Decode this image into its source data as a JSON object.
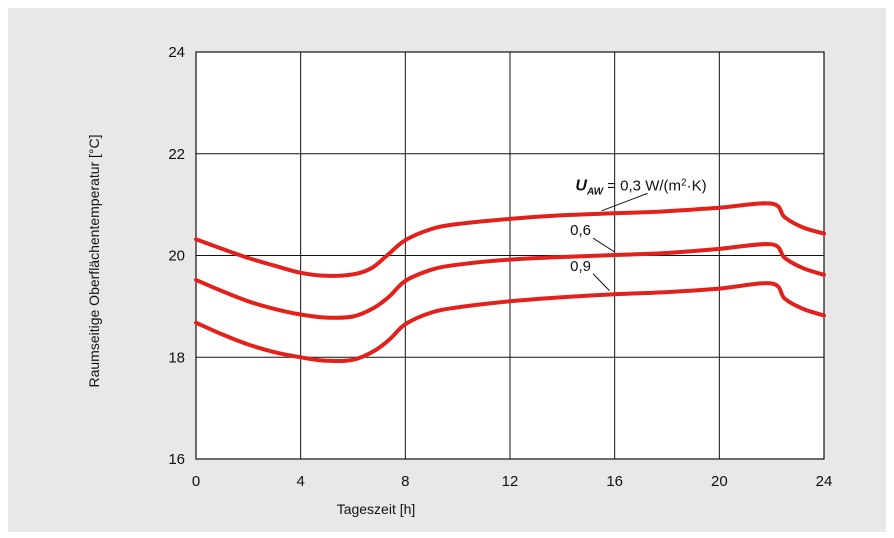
{
  "chart_data": {
    "type": "line",
    "title": "",
    "xlabel": "Tageszeit [h]",
    "ylabel": "Raumseitige Oberflächentemperatur [°C]",
    "xlim": [
      0,
      24
    ],
    "ylim": [
      16,
      24
    ],
    "x_ticks": [
      "0",
      "4",
      "8",
      "12",
      "16",
      "20",
      "24"
    ],
    "y_ticks": [
      "16",
      "18",
      "20",
      "22",
      "24"
    ],
    "grid": true,
    "line_color": "#e3211c",
    "series": [
      {
        "name": "0,3",
        "points": [
          [
            0,
            20.32
          ],
          [
            1,
            20.13
          ],
          [
            2,
            19.95
          ],
          [
            3,
            19.8
          ],
          [
            4,
            19.66
          ],
          [
            5,
            19.6
          ],
          [
            6,
            19.63
          ],
          [
            6.7,
            19.75
          ],
          [
            7.3,
            20.0
          ],
          [
            8,
            20.3
          ],
          [
            9,
            20.52
          ],
          [
            10,
            20.62
          ],
          [
            12,
            20.72
          ],
          [
            14,
            20.79
          ],
          [
            16,
            20.83
          ],
          [
            18,
            20.87
          ],
          [
            20,
            20.94
          ],
          [
            22,
            21.02
          ],
          [
            22.5,
            20.75
          ],
          [
            23.2,
            20.55
          ],
          [
            24,
            20.43
          ]
        ]
      },
      {
        "name": "0,6",
        "points": [
          [
            0,
            19.52
          ],
          [
            1,
            19.3
          ],
          [
            2,
            19.1
          ],
          [
            3,
            18.95
          ],
          [
            4,
            18.84
          ],
          [
            5,
            18.78
          ],
          [
            6,
            18.8
          ],
          [
            6.8,
            18.97
          ],
          [
            7.4,
            19.2
          ],
          [
            8,
            19.5
          ],
          [
            9,
            19.72
          ],
          [
            10,
            19.82
          ],
          [
            12,
            19.92
          ],
          [
            14,
            19.97
          ],
          [
            16,
            20.01
          ],
          [
            18,
            20.05
          ],
          [
            20,
            20.13
          ],
          [
            22,
            20.22
          ],
          [
            22.5,
            19.95
          ],
          [
            23.2,
            19.75
          ],
          [
            24,
            19.62
          ]
        ]
      },
      {
        "name": "0,9",
        "points": [
          [
            0,
            18.68
          ],
          [
            1,
            18.45
          ],
          [
            2,
            18.25
          ],
          [
            3,
            18.1
          ],
          [
            4,
            18.0
          ],
          [
            5,
            17.93
          ],
          [
            6,
            17.95
          ],
          [
            6.8,
            18.12
          ],
          [
            7.4,
            18.35
          ],
          [
            8,
            18.65
          ],
          [
            9,
            18.88
          ],
          [
            10,
            18.98
          ],
          [
            12,
            19.1
          ],
          [
            14,
            19.18
          ],
          [
            16,
            19.24
          ],
          [
            18,
            19.28
          ],
          [
            20,
            19.35
          ],
          [
            22,
            19.45
          ],
          [
            22.5,
            19.15
          ],
          [
            23.2,
            18.95
          ],
          [
            24,
            18.82
          ]
        ]
      }
    ],
    "annotations": [
      {
        "series": "0,3",
        "label_prefix": "U",
        "label_sub": "AW",
        "label": " = 0,3 W/(m",
        "label_sup": "2",
        "label_suffix": "·K)",
        "anchor": [
          15.5,
          20.82
        ],
        "text_at": [
          14.5,
          21.28
        ]
      },
      {
        "series": "0,6",
        "label": "0,6",
        "anchor": [
          16,
          20.01
        ],
        "text_at": [
          14.3,
          20.4
        ]
      },
      {
        "series": "0,9",
        "label": "0,9",
        "anchor": [
          15.8,
          19.25
        ],
        "text_at": [
          14.3,
          19.7
        ]
      }
    ]
  }
}
